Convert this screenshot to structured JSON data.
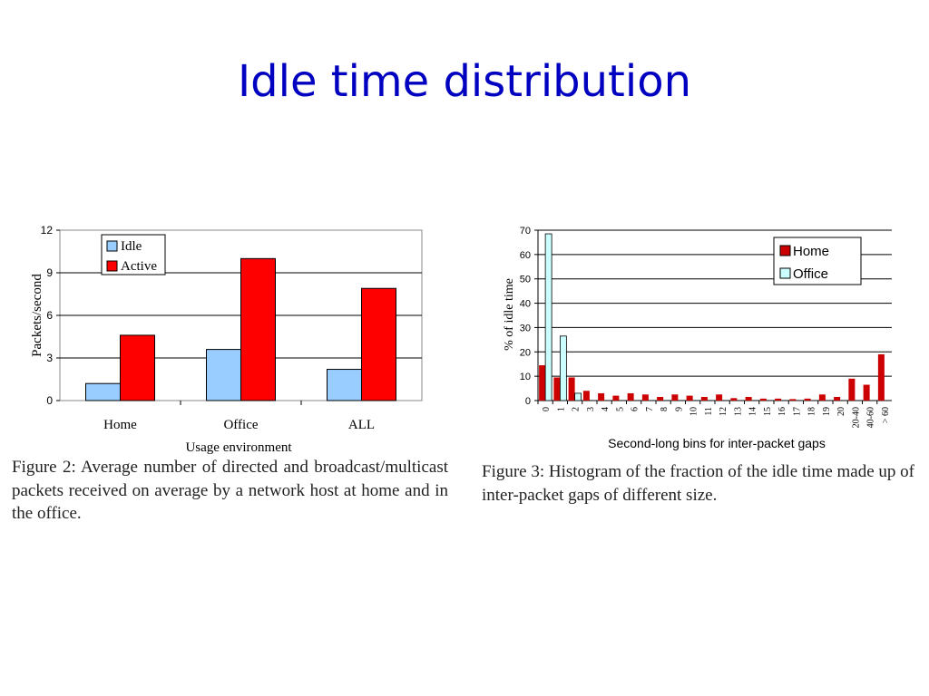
{
  "slide": {
    "title": "Idle time distribution"
  },
  "colors": {
    "idle": "#99ccff",
    "active": "#ff0000",
    "home": "#cc0000",
    "office": "#ccffff",
    "title": "#0000c0"
  },
  "captions": {
    "left": "Figure 2: Average number of directed and broadcast/multicast packets received on average by a network host at home and in the office.",
    "right": "Figure 3: Histogram of the fraction of the idle time made up of inter-packet gaps of different size."
  },
  "chart_data": [
    {
      "type": "bar",
      "categories": [
        "Home",
        "Office",
        "ALL"
      ],
      "series": [
        {
          "name": "Idle",
          "values": [
            1.2,
            3.6,
            2.2
          ]
        },
        {
          "name": "Active",
          "values": [
            4.6,
            10.0,
            7.9
          ]
        }
      ],
      "xlabel": "Usage environment",
      "ylabel": "Packets/second",
      "ylim": [
        0,
        12
      ],
      "yticks": [
        "0",
        "3",
        "6",
        "9",
        "12"
      ],
      "grid": true,
      "legend": "top-left"
    },
    {
      "type": "bar",
      "categories": [
        "0",
        "1",
        "2",
        "3",
        "4",
        "5",
        "6",
        "7",
        "8",
        "9",
        "10",
        "11",
        "12",
        "13",
        "14",
        "15",
        "16",
        "17",
        "18",
        "19",
        "20",
        "20-40",
        "40-60",
        "> 60"
      ],
      "series": [
        {
          "name": "Home",
          "values": [
            14.5,
            9.5,
            9.5,
            4,
            3,
            2,
            3,
            2.5,
            1.5,
            2.5,
            2,
            1.5,
            2.5,
            1,
            1.5,
            0.8,
            0.8,
            0.6,
            0.8,
            2.5,
            1.5,
            9,
            6.5,
            19
          ]
        },
        {
          "name": "Office",
          "values": [
            68.5,
            26.5,
            3,
            0,
            0,
            0,
            0,
            0,
            0,
            0,
            0,
            0,
            0,
            0,
            0,
            0,
            0,
            0,
            0,
            0,
            0,
            0,
            0,
            0
          ]
        }
      ],
      "xlabel": "Second-long bins for inter-packet gaps",
      "ylabel": "% of idle time",
      "ylim": [
        0,
        70
      ],
      "yticks": [
        "0",
        "10",
        "20",
        "30",
        "40",
        "50",
        "60",
        "70"
      ],
      "grid": true,
      "legend": "top-right"
    }
  ]
}
